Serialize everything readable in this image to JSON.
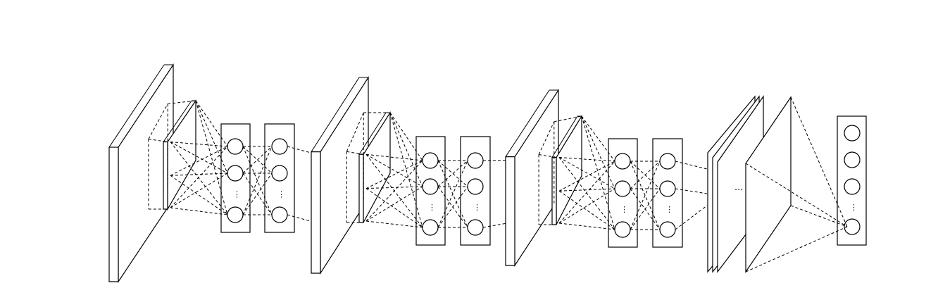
{
  "figure": {
    "conv_stages": [
      {
        "hidden_neurons_shown": 3,
        "ellipsis": "⋮"
      },
      {
        "hidden_neurons_shown": 3,
        "ellipsis": "⋮"
      },
      {
        "hidden_neurons_shown": 3,
        "ellipsis": "⋮"
      }
    ],
    "final_stack": {
      "plates": 3,
      "ellipsis": "..."
    },
    "output_column": {
      "neurons_shown": 4,
      "ellipsis": "⋮"
    }
  }
}
